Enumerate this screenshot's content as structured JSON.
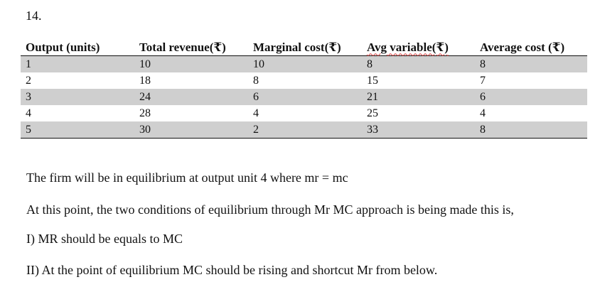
{
  "question_number": "14.",
  "table": {
    "headers": [
      "Output (units)",
      "Total revenue(₹)",
      "Marginal cost(₹)",
      "Avg variable(₹)",
      "Average cost (₹)"
    ],
    "rows": [
      [
        "1",
        "10",
        "10",
        "8",
        "8"
      ],
      [
        "2",
        "18",
        "8",
        "15",
        "7"
      ],
      [
        "3",
        "24",
        "6",
        "21",
        "6"
      ],
      [
        "4",
        "28",
        "4",
        "25",
        "4"
      ],
      [
        "5",
        "30",
        "2",
        "33",
        "8"
      ]
    ]
  },
  "paragraphs": [
    "The firm will be in equilibrium at output unit 4 where mr = mc",
    "At this point, the two conditions of equilibrium through Mr MC approach is being made this is,",
    "I) MR should be equals to MC",
    "II) At the point of equilibrium MC should be rising and shortcut Mr from below."
  ]
}
